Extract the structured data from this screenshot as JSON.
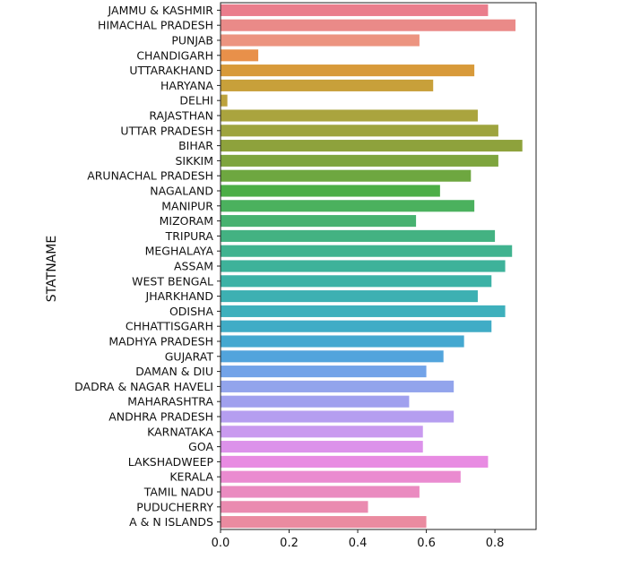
{
  "chart_data": {
    "type": "bar",
    "orientation": "horizontal",
    "title": "",
    "xlabel": "",
    "ylabel": "STATNAME",
    "xlim": [
      0.0,
      0.92
    ],
    "xticks": [
      0.0,
      0.2,
      0.4,
      0.6,
      0.8
    ],
    "xtick_labels": [
      "0.0",
      "0.2",
      "0.4",
      "0.6",
      "0.8"
    ],
    "grid": false,
    "categories": [
      "JAMMU & KASHMIR",
      "HIMACHAL PRADESH",
      "PUNJAB",
      "CHANDIGARH",
      "UTTARAKHAND",
      "HARYANA",
      "DELHI",
      "RAJASTHAN",
      "UTTAR PRADESH",
      "BIHAR",
      "SIKKIM",
      "ARUNACHAL PRADESH",
      "NAGALAND",
      "MANIPUR",
      "MIZORAM",
      "TRIPURA",
      "MEGHALAYA",
      "ASSAM",
      "WEST BENGAL",
      "JHARKHAND",
      "ODISHA",
      "CHHATTISGARH",
      "MADHYA PRADESH",
      "GUJARAT",
      "DAMAN & DIU",
      "DADRA & NAGAR HAVELI",
      "MAHARASHTRA",
      "ANDHRA PRADESH",
      "KARNATAKA",
      "GOA",
      "LAKSHADWEEP",
      "KERALA",
      "TAMIL NADU",
      "PUDUCHERRY",
      "A & N ISLANDS"
    ],
    "values": [
      0.78,
      0.86,
      0.58,
      0.11,
      0.74,
      0.62,
      0.02,
      0.75,
      0.81,
      0.88,
      0.81,
      0.73,
      0.64,
      0.74,
      0.57,
      0.8,
      0.85,
      0.83,
      0.79,
      0.75,
      0.83,
      0.79,
      0.71,
      0.65,
      0.6,
      0.68,
      0.55,
      0.68,
      0.59,
      0.59,
      0.78,
      0.7,
      0.58,
      0.43,
      0.6
    ],
    "colors": [
      "#ea7d8c",
      "#ea8a88",
      "#ec9480",
      "#e8904a",
      "#d89a3a",
      "#c8a03a",
      "#bda33c",
      "#aaa43e",
      "#9ea43e",
      "#8ea23c",
      "#7ea53e",
      "#6ea740",
      "#4cae46",
      "#4bb15e",
      "#47b270",
      "#43b282",
      "#40b38f",
      "#3eb29a",
      "#3cb2a6",
      "#3db0b2",
      "#3eb0bc",
      "#40acc6",
      "#44a8d0",
      "#52a4dc",
      "#72a3e8",
      "#92a4ec",
      "#a0a0ee",
      "#b59ef0",
      "#c99aef",
      "#dc92ea",
      "#e88be2",
      "#ea8bd0",
      "#ea8bc0",
      "#ea8bb0",
      "#ea8ba0"
    ]
  }
}
